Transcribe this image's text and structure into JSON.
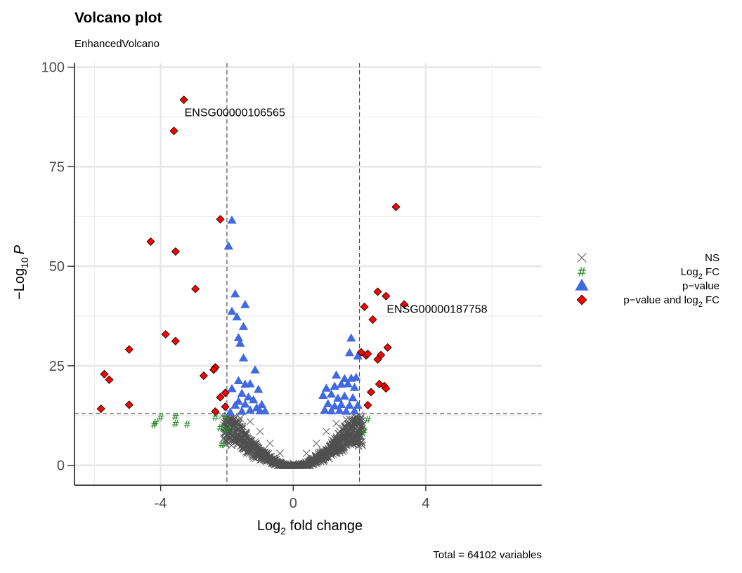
{
  "chart_data": {
    "type": "scatter",
    "title": "Volcano plot",
    "subtitle": "EnhancedVolcano",
    "xlabel": {
      "main": "Log",
      "sub": "2",
      "rest": " fold change"
    },
    "ylabel": {
      "prefix": "−Log",
      "sub": "10",
      "italic": "P"
    },
    "xlim": [
      -6.6,
      7.5
    ],
    "ylim": [
      -5,
      101
    ],
    "xticks": [
      -4,
      0,
      4
    ],
    "xtick_labels": [
      "-4",
      "0",
      "4"
    ],
    "yticks": [
      0,
      25,
      50,
      75,
      100
    ],
    "ytick_labels": [
      "0",
      "25",
      "50",
      "75",
      "100"
    ],
    "grid": true,
    "cutoffs": {
      "log2fc": 2,
      "pvalue_neglog10": 13
    },
    "caption": "Total = 64102 variables",
    "legend_position": "right",
    "legend": [
      {
        "key": "NS",
        "label_main": "NS",
        "label_sub": "",
        "label_rest": "",
        "color": "#505050",
        "shape": "cross"
      },
      {
        "key": "FC",
        "label_main": "Log",
        "label_sub": "2",
        "label_rest": " FC",
        "color": "#228B22",
        "shape": "hash"
      },
      {
        "key": "P",
        "label_main": "p−value",
        "label_sub": "",
        "label_rest": "",
        "color": "#4169E1",
        "shape": "triangle"
      },
      {
        "key": "PFC",
        "label_main": "p−value and log",
        "label_sub": "2",
        "label_rest": " FC",
        "color": "#FF0000",
        "shape": "diamond"
      }
    ],
    "labels": [
      {
        "text": "ENSG00000106565",
        "x": -3.3,
        "y": 88.7
      },
      {
        "text": "ENSG00000187758",
        "x": 2.8,
        "y": 39.4
      }
    ],
    "series": [
      {
        "name": "p−value and log2 FC",
        "color": "#FF0000",
        "shape": "diamond",
        "points": [
          [
            -3.3,
            91.8
          ],
          [
            -3.6,
            84.0
          ],
          [
            -2.2,
            61.8
          ],
          [
            -4.3,
            56.2
          ],
          [
            -3.55,
            53.7
          ],
          [
            -2.95,
            44.3
          ],
          [
            -3.85,
            32.9
          ],
          [
            -3.55,
            31.2
          ],
          [
            -4.95,
            29.1
          ],
          [
            -2.35,
            24.6
          ],
          [
            -2.4,
            24.0
          ],
          [
            -2.7,
            22.5
          ],
          [
            -5.7,
            22.9
          ],
          [
            -5.55,
            21.5
          ],
          [
            -2.05,
            18.2
          ],
          [
            -2.2,
            17.1
          ],
          [
            -4.95,
            15.2
          ],
          [
            -2.05,
            14.7
          ],
          [
            -5.8,
            14.2
          ],
          [
            -2.35,
            13.5
          ],
          [
            3.1,
            64.9
          ],
          [
            2.55,
            43.6
          ],
          [
            2.8,
            42.5
          ],
          [
            3.35,
            40.4
          ],
          [
            2.15,
            39.8
          ],
          [
            2.4,
            36.6
          ],
          [
            2.05,
            28.4
          ],
          [
            2.85,
            29.6
          ],
          [
            2.2,
            27.6
          ],
          [
            2.25,
            28.0
          ],
          [
            2.65,
            27.7
          ],
          [
            2.55,
            26.6
          ],
          [
            2.6,
            20.4
          ],
          [
            2.75,
            19.9
          ],
          [
            2.8,
            19.3
          ],
          [
            2.35,
            18.4
          ],
          [
            2.25,
            15.1
          ]
        ]
      },
      {
        "name": "p−value",
        "color": "#4169E1",
        "shape": "triangle",
        "points": [
          [
            -1.85,
            61.5
          ],
          [
            -1.95,
            55.0
          ],
          [
            -1.75,
            43.0
          ],
          [
            -1.45,
            40.3
          ],
          [
            -1.85,
            38.6
          ],
          [
            -1.7,
            37.2
          ],
          [
            -1.5,
            34.8
          ],
          [
            -1.65,
            32.0
          ],
          [
            -1.6,
            30.6
          ],
          [
            -1.5,
            26.9
          ],
          [
            -1.15,
            23.9
          ],
          [
            -1.65,
            21.2
          ],
          [
            -1.45,
            20.3
          ],
          [
            -1.85,
            19.2
          ],
          [
            -1.3,
            20.4
          ],
          [
            -1.05,
            19.0
          ],
          [
            -1.55,
            18.0
          ],
          [
            -1.35,
            17.1
          ],
          [
            -1.2,
            16.4
          ],
          [
            -1.65,
            16.0
          ],
          [
            -1.45,
            15.3
          ],
          [
            -0.95,
            15.2
          ],
          [
            -1.75,
            15.0
          ],
          [
            -1.1,
            14.4
          ],
          [
            -1.3,
            13.8
          ],
          [
            -0.85,
            13.6
          ],
          [
            -1.55,
            13.5
          ],
          [
            -1.9,
            13.3
          ],
          [
            -1.0,
            13.6
          ],
          [
            1.75,
            31.9
          ],
          [
            1.7,
            28.2
          ],
          [
            1.95,
            27.4
          ],
          [
            1.3,
            22.6
          ],
          [
            1.55,
            21.7
          ],
          [
            1.75,
            21.8
          ],
          [
            1.9,
            22.0
          ],
          [
            1.0,
            19.3
          ],
          [
            1.25,
            19.8
          ],
          [
            1.45,
            20.3
          ],
          [
            1.65,
            20.4
          ],
          [
            1.85,
            19.5
          ],
          [
            0.9,
            17.5
          ],
          [
            1.15,
            17.8
          ],
          [
            1.35,
            16.8
          ],
          [
            1.55,
            17.3
          ],
          [
            1.8,
            16.9
          ],
          [
            1.05,
            15.4
          ],
          [
            1.25,
            14.8
          ],
          [
            1.45,
            15.2
          ],
          [
            1.7,
            15.0
          ],
          [
            1.95,
            15.0
          ],
          [
            0.95,
            13.8
          ],
          [
            1.15,
            13.6
          ],
          [
            1.4,
            13.7
          ],
          [
            1.6,
            13.5
          ],
          [
            1.85,
            13.6
          ]
        ]
      },
      {
        "name": "Log2 FC",
        "color": "#228B22",
        "shape": "hash",
        "points": [
          [
            -4.2,
            10.2
          ],
          [
            -4.15,
            10.7
          ],
          [
            -4.0,
            12.0
          ],
          [
            -3.55,
            10.4
          ],
          [
            -3.55,
            12.2
          ],
          [
            -3.2,
            10.3
          ],
          [
            -2.35,
            12.0
          ],
          [
            -2.2,
            9.4
          ],
          [
            -2.05,
            12.0
          ],
          [
            -2.0,
            8.8
          ],
          [
            -2.15,
            5.2
          ],
          [
            2.25,
            11.5
          ],
          [
            2.15,
            8.6
          ]
        ]
      },
      {
        "name": "NS",
        "color": "#505050",
        "shape": "cross",
        "generated": true,
        "count": 900,
        "points": [
          [
            -2.15,
            12.5
          ],
          [
            -1.9,
            12.0
          ],
          [
            -1.6,
            11.8
          ],
          [
            -1.3,
            11.0
          ],
          [
            -1.75,
            9.5
          ],
          [
            -1.0,
            8.5
          ],
          [
            -0.7,
            5.5
          ],
          [
            -0.4,
            3.0
          ],
          [
            0.0,
            0.5
          ],
          [
            0.4,
            3.0
          ],
          [
            0.7,
            5.5
          ],
          [
            1.0,
            8.5
          ],
          [
            1.3,
            10.5
          ],
          [
            1.6,
            11.5
          ],
          [
            1.9,
            12.3
          ]
        ]
      }
    ]
  }
}
